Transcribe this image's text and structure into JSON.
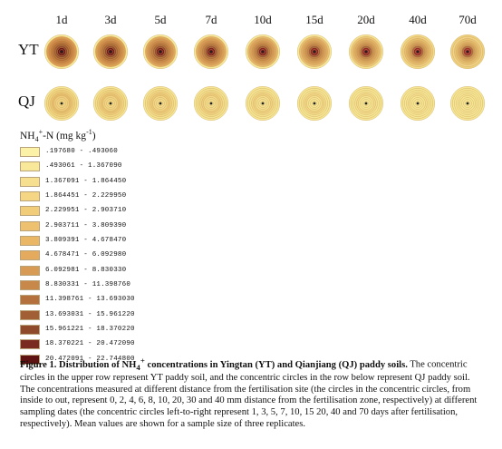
{
  "days": [
    "1d",
    "3d",
    "5d",
    "7d",
    "10d",
    "15d",
    "20d",
    "40d",
    "70d"
  ],
  "rows": [
    {
      "label": "YT",
      "circles": [
        [
          "#f7e899",
          "#f7e899",
          "#f7e899",
          "#f7e899",
          "#f7e899",
          "#f7e899",
          "#f6e392",
          "#f2da86",
          "#eed07c"
        ],
        [
          "#dd9a52",
          "#dda153",
          "#e0a65c",
          "#e4ae62",
          "#e6b66a",
          "#e9bf73",
          "#ecc679",
          "#efcd80",
          "#f1d286"
        ],
        [
          "#cf8948",
          "#d2904d",
          "#d59652",
          "#d99c56",
          "#dca35c",
          "#e0ab61",
          "#e3b366",
          "#e6bc6d",
          "#e9c373"
        ],
        [
          "#c27a3c",
          "#c68142",
          "#ca8747",
          "#cf8e4c",
          "#d39652",
          "#d79e58",
          "#dba75e",
          "#dfb064",
          "#e3b86a"
        ],
        [
          "#b06a33",
          "#b67138",
          "#bb783e",
          "#c18043",
          "#c68748",
          "#cb8f4e",
          "#d09854",
          "#d5a05b",
          "#daa961"
        ],
        [
          "#9f5b2e",
          "#a56233",
          "#ab6938",
          "#b1703c",
          "#b77840",
          "#bd7f45",
          "#c3884a",
          "#c99150",
          "#cf9956"
        ],
        [
          "#8c4428",
          "#90492b",
          "#944e2d",
          "#985330",
          "#9c5833",
          "#a05d36",
          "#a46239",
          "#a8673c",
          "#ac6c3f"
        ],
        [
          "#6f1717",
          "#741a1a",
          "#7a1d1d",
          "#801f1f",
          "#862222",
          "#8c2525",
          "#922828",
          "#982c2c",
          "#9e3030"
        ],
        [
          "#621313",
          "#6a1616",
          "#731919",
          "#7b1c1c",
          "#831f1f",
          "#8b2222",
          "#932525",
          "#9b2828",
          "#a22c2c"
        ]
      ]
    },
    {
      "label": "QJ",
      "circles": [
        [
          "#f6e593",
          "#f6e593",
          "#f6e593",
          "#f6e593",
          "#f6e593",
          "#f6e593",
          "#f6e593",
          "#f6e593",
          "#f6e593"
        ],
        [
          "#f2d884",
          "#f3dc88",
          "#f4df8c",
          "#f5e290",
          "#f6e593",
          "#f6e593",
          "#f6e593",
          "#f6e593",
          "#f6e593"
        ],
        [
          "#f0d27d",
          "#f1d581",
          "#f2d885",
          "#f3dc89",
          "#f4df8d",
          "#f5e291",
          "#f6e593",
          "#f6e593",
          "#f6e593"
        ],
        [
          "#ecc775",
          "#eecc7a",
          "#f0d07e",
          "#f1d482",
          "#f2d786",
          "#f3db8a",
          "#f4de8e",
          "#f5e291",
          "#f6e593"
        ],
        [
          "#e7bd6c",
          "#eac372",
          "#ecc877",
          "#eecc7b",
          "#f0d17f",
          "#f2d583",
          "#f3d988",
          "#f4dd8c",
          "#f5e190"
        ],
        [
          "#efcd7c",
          "#f0d17f",
          "#f2d583",
          "#f3d987",
          "#f4dd8b",
          "#f5e08f",
          "#f6e392",
          "#f6e593",
          "#f6e593"
        ],
        [
          "#f1d282",
          "#f2d685",
          "#f3d989",
          "#f4dc8c",
          "#f5df90",
          "#f6e392",
          "#f6e593",
          "#f6e593",
          "#f6e593"
        ],
        [
          "#f2d583",
          "#f3d886",
          "#f4db8a",
          "#f4de8e",
          "#f5e191",
          "#f6e593",
          "#f6e593",
          "#f6e593",
          "#f6e593"
        ],
        [
          "#f3d884",
          "#f3da87",
          "#f4dd8b",
          "#f5e08e",
          "#f6e392",
          "#f6e593",
          "#f6e593",
          "#f6e593",
          "#f6e593"
        ]
      ]
    }
  ],
  "legend": {
    "title_main": "NH",
    "title_sub": "4",
    "title_sup1": "+",
    "title_mid": "-N (mg kg",
    "title_sup2": "-1",
    "title_end": ")",
    "items": [
      {
        "range": ".197680 - .493060",
        "color": "#fbf2a8"
      },
      {
        "range": ".493061 - 1.367090",
        "color": "#f8e89a"
      },
      {
        "range": "1.367091 - 1.864450",
        "color": "#f6df8e"
      },
      {
        "range": "1.864451 - 2.229950",
        "color": "#f4d684"
      },
      {
        "range": "2.229951 - 2.903710",
        "color": "#f1cc79"
      },
      {
        "range": "2.903711 - 3.809390",
        "color": "#eec170"
      },
      {
        "range": "3.809391 - 4.678470",
        "color": "#eab766"
      },
      {
        "range": "4.678471 - 6.092980",
        "color": "#e4aa5d"
      },
      {
        "range": "6.092981 - 8.830330",
        "color": "#d89b55"
      },
      {
        "range": "8.830331 - 11.398760",
        "color": "#c8884a"
      },
      {
        "range": "11.398761 - 13.693030",
        "color": "#b4713d"
      },
      {
        "range": "13.693031 - 15.961220",
        "color": "#a25e34"
      },
      {
        "range": "15.961221 - 18.370220",
        "color": "#8e4a2a"
      },
      {
        "range": "18.370221 - 20.472090",
        "color": "#7a2a20"
      },
      {
        "range": "20.472091 - 22.744800",
        "color": "#5e1212"
      }
    ]
  },
  "caption": {
    "title": "Figure 1. Distribution of NH",
    "title_sub": "4",
    "title_sup": "+",
    "title_rest": " concentrations in Yingtan (YT) and Qianjiang (QJ) paddy soils.",
    "body": " The concentric circles in the upper row represent YT paddy soil, and the concentric circles in the row below represent QJ paddy soil. The concentrations measured at different distance from the fertilisation site (the circles in the concentric circles, from inside to out, represent 0, 2, 4, 6, 8, 10, 20, 30 and 40 mm distance from the fertilisation zone, respectively) at different sampling dates (the concentric circles left-to-right represent 1, 3, 5, 7, 10, 15 20, 40 and 70 days after fertilisation, respectively). Mean values are shown for a sample size of three replicates."
  }
}
